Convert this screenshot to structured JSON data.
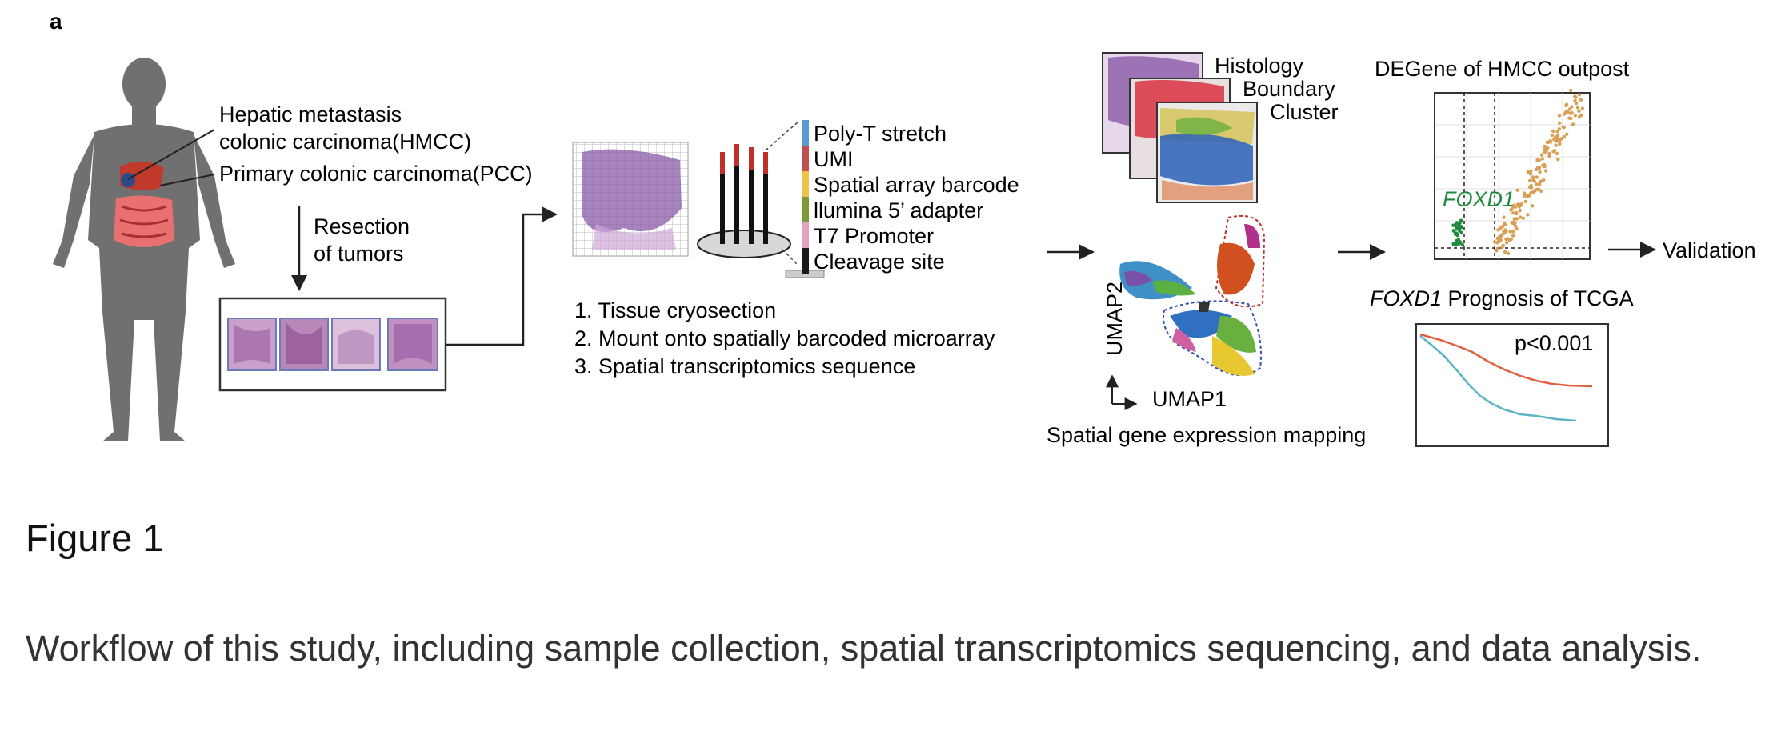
{
  "panel_label": "a",
  "human": {
    "label_hmcc_1": "Hepatic metastasis",
    "label_hmcc_2": "colonic carcinoma(HMCC)",
    "label_pcc": "Primary colonic carcinoma(PCC)",
    "resection_1": "Resection",
    "resection_2": "of tumors"
  },
  "probe": {
    "segments": [
      {
        "label": "Poly-T stretch",
        "color": "#5b9bd5"
      },
      {
        "label": "UMI",
        "color": "#c0504d"
      },
      {
        "label": "Spatial array barcode",
        "color": "#f2c04b"
      },
      {
        "label": "llumina 5’ adapter",
        "color": "#7a9a3a"
      },
      {
        "label": "T7 Promoter",
        "color": "#e8a0c0"
      },
      {
        "label": "Cleavage site",
        "color": "#1a1a1a"
      }
    ]
  },
  "steps": [
    "1. Tissue cryosection",
    "2. Mount onto spatially barcoded microarray",
    "3. Spatial transcriptomics sequence"
  ],
  "layers": {
    "histology": "Histology",
    "boundary": "Boundary",
    "cluster": "Cluster"
  },
  "umap": {
    "axis_y": "UMAP2",
    "axis_x": "UMAP1",
    "caption": "Spatial gene expression mapping"
  },
  "deg": {
    "title": "DEGene of HMCC outpost",
    "gene": "FOXD1",
    "gene_color": "#1e8a3c",
    "point_color": "#d9a055"
  },
  "km": {
    "title_gene": "FOXD1",
    "title_rest": " Prognosis of TCGA",
    "pvalue": "p<0.001",
    "colors": [
      "#e06040",
      "#5ab4c8"
    ]
  },
  "validation": "Validation",
  "caption": {
    "title": "Figure 1",
    "text": "Workflow of this study, including sample collection, spatial transcriptomics sequencing, and data analysis."
  }
}
